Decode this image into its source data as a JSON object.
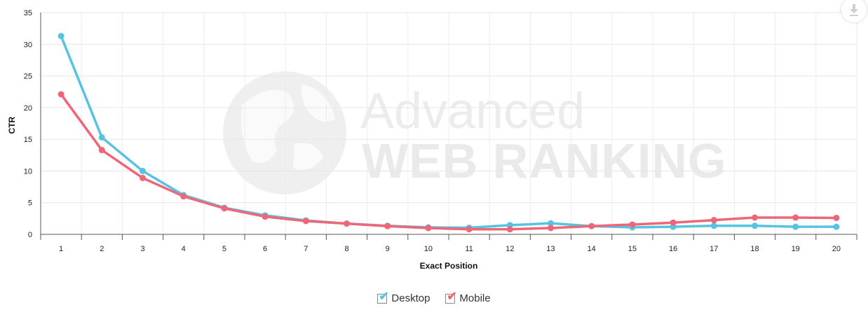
{
  "chart_data": {
    "type": "line",
    "xlabel": "Exact Position",
    "ylabel": "CTR",
    "ylim": [
      0,
      35
    ],
    "yticks": [
      "0",
      "5",
      "10",
      "15",
      "20",
      "25",
      "30",
      "35"
    ],
    "categories": [
      "1",
      "2",
      "3",
      "4",
      "5",
      "6",
      "7",
      "8",
      "9",
      "10",
      "11",
      "12",
      "13",
      "14",
      "15",
      "16",
      "17",
      "18",
      "19",
      "20"
    ],
    "grid": true,
    "legend_position": "bottom-center",
    "series": [
      {
        "name": "Desktop",
        "color": "#56c4e0",
        "values": [
          31.3,
          15.3,
          10.0,
          6.2,
          4.2,
          3.0,
          2.2,
          1.7,
          1.35,
          1.1,
          1.05,
          1.45,
          1.75,
          1.3,
          1.1,
          1.2,
          1.35,
          1.35,
          1.2,
          1.2
        ]
      },
      {
        "name": "Mobile",
        "color": "#ee6677",
        "values": [
          22.1,
          13.3,
          8.9,
          6.0,
          4.1,
          2.8,
          2.1,
          1.7,
          1.3,
          1.0,
          0.8,
          0.8,
          1.0,
          1.3,
          1.55,
          1.85,
          2.25,
          2.65,
          2.65,
          2.6
        ]
      }
    ]
  },
  "watermark": {
    "line1": "Advanced",
    "line2": "WEB RANKING"
  },
  "icons": {
    "download": "download-icon",
    "globe": "globe-icon"
  }
}
